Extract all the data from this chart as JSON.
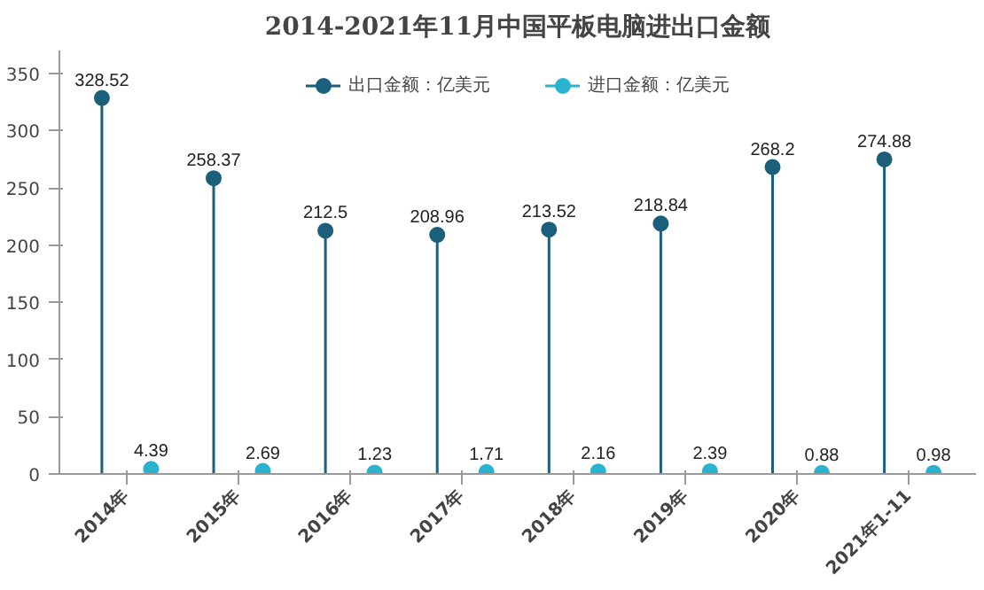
{
  "chart_data": {
    "type": "lollipop",
    "title": "2014-2021年11月中国平板电脑进出口金额",
    "categories": [
      "2014年",
      "2015年",
      "2016年",
      "2017年",
      "2018年",
      "2019年",
      "2020年",
      "2021年1-11"
    ],
    "series": [
      {
        "name": "出口金额：亿美元",
        "color": "#1b5f7a",
        "values": [
          328.52,
          258.37,
          212.5,
          208.96,
          213.52,
          218.84,
          268.2,
          274.88
        ]
      },
      {
        "name": "进口金额：亿美元",
        "color": "#29b3cf",
        "values": [
          4.39,
          2.69,
          1.23,
          1.71,
          2.16,
          2.39,
          0.88,
          0.98
        ]
      }
    ],
    "ylim": [
      0,
      370
    ],
    "yticks": [
      0,
      50,
      100,
      150,
      200,
      250,
      300,
      350
    ],
    "data_labels": true,
    "legend": "top",
    "marker": "circle"
  }
}
